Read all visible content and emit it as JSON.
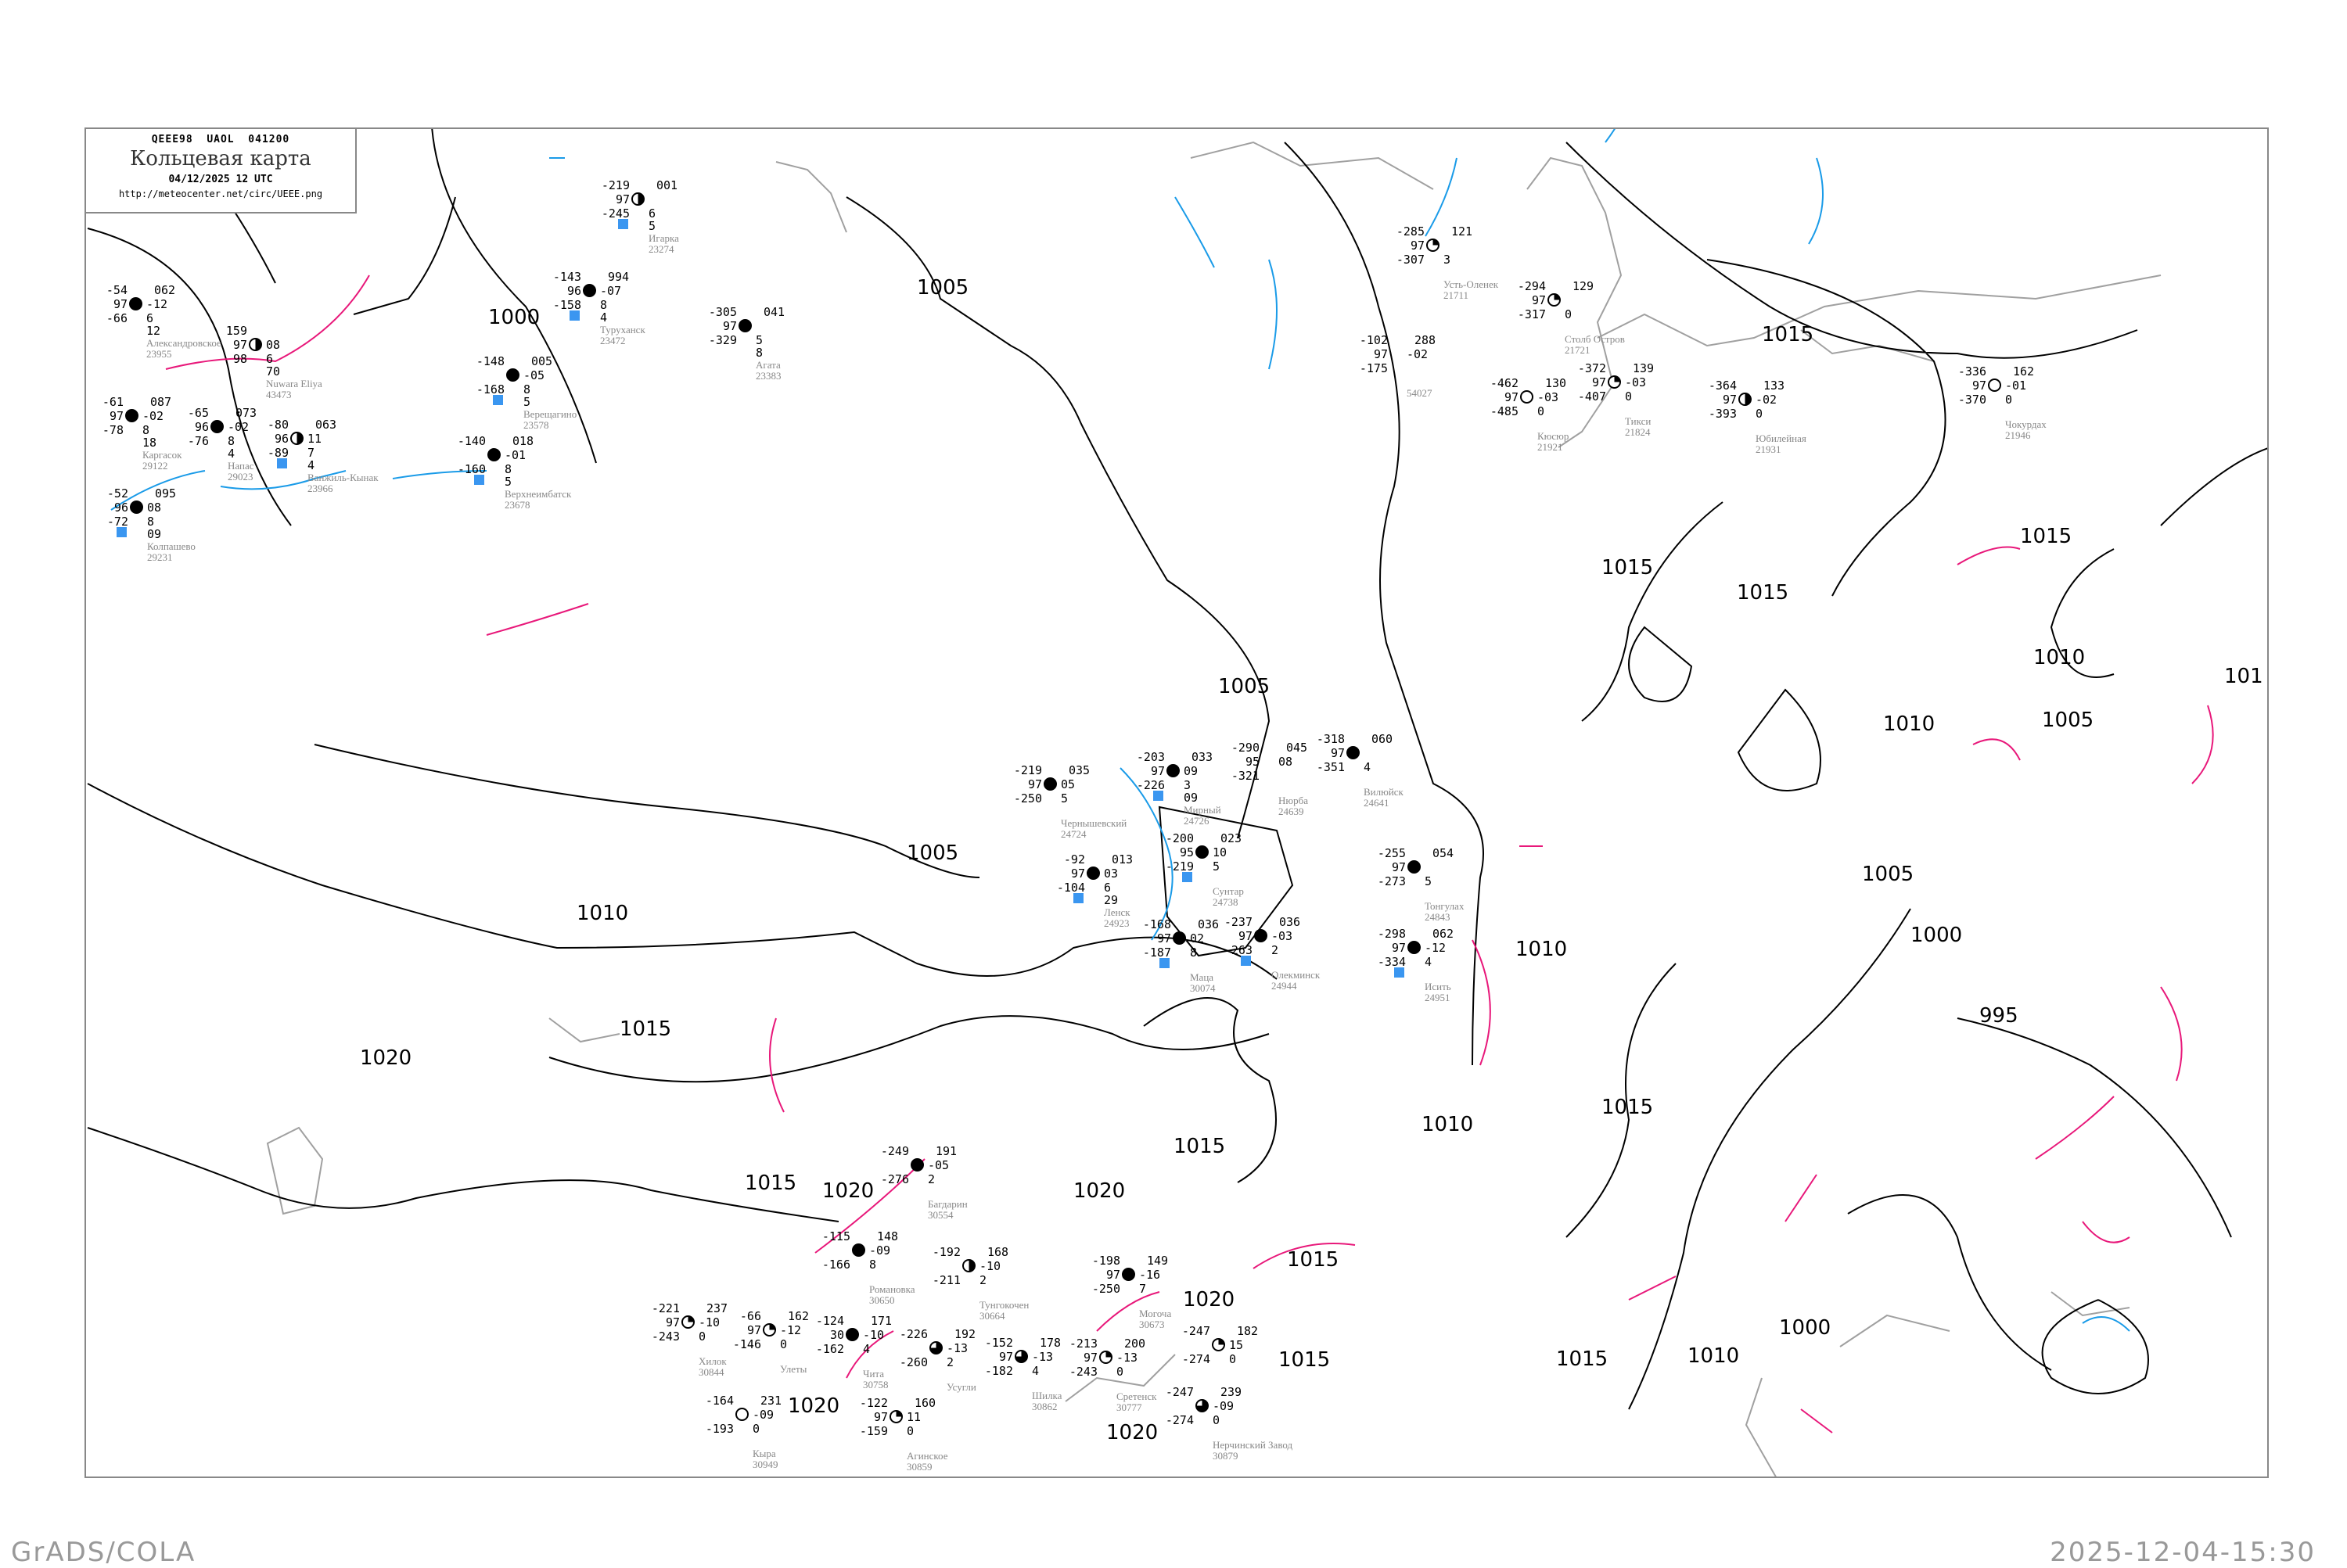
{
  "header": {
    "code_line": "QEEE98  UAOL  041200",
    "title": "Кольцевая карта",
    "date": "04/12/2025 12 UTC",
    "url": "http://meteocenter.net/circ/UEEE.png"
  },
  "footer": {
    "left": "GrADS/COLA",
    "right": "2025-12-04-15:30"
  },
  "colors": {
    "isobar": "#000000",
    "isotherm_positive": "#e8187a",
    "isotherm_negative": "#1a9be8",
    "coastline": "#a0a0a0",
    "snow_marker": "#3a96f0"
  },
  "isobar_labels": [
    "1000",
    "1005",
    "1015",
    "1005",
    "1010",
    "1015",
    "1020",
    "1005",
    "1020",
    "1020",
    "1020",
    "1020",
    "1015",
    "1015",
    "1015",
    "1010",
    "1010",
    "1005",
    "1005",
    "1000",
    "995",
    "1015",
    "1010",
    "1015",
    "1015",
    "1015",
    "1015",
    "1010",
    "1000",
    "1020",
    "1015",
    "1010",
    "101"
  ],
  "stations": [
    {
      "name": "Александровское",
      "id": "23955",
      "t": "-54",
      "vis": "97",
      "td": "-66",
      "p": "062",
      "tend": "-12",
      "cl": "6",
      "cl2": "12",
      "sky": "full"
    },
    {
      "name": "Nuwara Eliya",
      "id": "43473",
      "t": "159",
      "vis": "97",
      "td": "98",
      "p": "",
      "tend": "08",
      "cl": "6",
      "cl2": "70",
      "sky": "half"
    },
    {
      "name": "Каргасок",
      "id": "29122",
      "t": "-61",
      "vis": "97",
      "td": "-78",
      "p": "087",
      "tend": "-02",
      "cl": "8",
      "cl2": "18",
      "sky": "full"
    },
    {
      "name": "Напас",
      "id": "29023",
      "t": "-65",
      "vis": "96",
      "td": "-76",
      "p": "073",
      "tend": "-02",
      "cl": "8",
      "cl2": "4",
      "sky": "full"
    },
    {
      "name": "Ванжиль-Кынак",
      "id": "23966",
      "t": "-80",
      "vis": "96",
      "td": "-89",
      "p": "063",
      "tend": "11",
      "cl": "7",
      "cl2": "4",
      "sky": "half",
      "snow": true
    },
    {
      "name": "Колпашево",
      "id": "29231",
      "t": "-52",
      "vis": "96",
      "td": "-72",
      "p": "095",
      "tend": "08",
      "cl": "8",
      "cl2": "09",
      "sky": "full",
      "snow": true
    },
    {
      "name": "Игарка",
      "id": "23274",
      "t": "-219",
      "vis": "97",
      "td": "-245",
      "p": "001",
      "tend": "",
      "cl": "6",
      "cl2": "5",
      "sky": "half",
      "snow": true
    },
    {
      "name": "Туруханск",
      "id": "23472",
      "t": "-143",
      "vis": "96",
      "td": "-158",
      "p": "994",
      "tend": "-07",
      "cl": "8",
      "cl2": "4",
      "sky": "full",
      "snow": true
    },
    {
      "name": "Агата",
      "id": "23383",
      "t": "-305",
      "vis": "97",
      "td": "-329",
      "p": "041",
      "tend": "",
      "cl": "5",
      "cl2": "8",
      "sky": "full"
    },
    {
      "name": "Верещагино",
      "id": "23578",
      "t": "-148",
      "vis": "",
      "td": "-168",
      "p": "005",
      "tend": "-05",
      "cl": "8",
      "cl2": "5",
      "sky": "full",
      "snow": true
    },
    {
      "name": "Верхнеимбатск",
      "id": "23678",
      "t": "-140",
      "vis": "",
      "td": "-160",
      "p": "018",
      "tend": "-01",
      "cl": "8",
      "cl2": "5",
      "sky": "full",
      "snow": true
    },
    {
      "name": "Усть-Оленек",
      "id": "21711",
      "t": "-285",
      "vis": "97",
      "td": "-307",
      "p": "121",
      "tend": "",
      "cl": "3",
      "cl2": "",
      "sky": "quarter"
    },
    {
      "name": "Столб Остров",
      "id": "21721",
      "t": "-294",
      "vis": "97",
      "td": "-317",
      "p": "129",
      "tend": "",
      "cl": "0",
      "cl2": "",
      "sky": "quarter"
    },
    {
      "name": "Тикси",
      "id": "21824",
      "t": "-372",
      "vis": "97",
      "td": "-407",
      "p": "139",
      "tend": "-03",
      "cl": "0",
      "cl2": "",
      "sky": "quarter"
    },
    {
      "name": "Кюсюр",
      "id": "21921",
      "t": "-462",
      "vis": "97",
      "td": "-485",
      "p": "130",
      "tend": "-03",
      "cl": "0",
      "cl2": "",
      "sky": "empty"
    },
    {
      "name": "Юбилейная",
      "id": "21931",
      "t": "-364",
      "vis": "97",
      "td": "-393",
      "p": "133",
      "tend": "-02",
      "cl": "0",
      "cl2": "",
      "sky": "half"
    },
    {
      "name": "",
      "id": "54027",
      "t": "-102",
      "vis": "97",
      "td": "-175",
      "p": "288",
      "tend": "-02",
      "cl": "",
      "cl2": "",
      "sky": "none"
    },
    {
      "name": "Чокурдах",
      "id": "21946",
      "t": "-336",
      "vis": "97",
      "td": "-370",
      "p": "162",
      "tend": "-01",
      "cl": "0",
      "cl2": "",
      "sky": "empty"
    },
    {
      "name": "Чернышевский",
      "id": "24724",
      "t": "-219",
      "vis": "97",
      "td": "-250",
      "p": "035",
      "tend": "05",
      "cl": "5",
      "cl2": "",
      "sky": "full"
    },
    {
      "name": "Мирный",
      "id": "24726",
      "t": "-203",
      "vis": "97",
      "td": "-226",
      "p": "033",
      "tend": "09",
      "cl": "3",
      "cl2": "09",
      "sky": "full",
      "snow": true
    },
    {
      "name": "Сунтар",
      "id": "24738",
      "t": "-200",
      "vis": "95",
      "td": "-219",
      "p": "023",
      "tend": "10",
      "cl": "5",
      "cl2": "",
      "sky": "full",
      "snow": true
    },
    {
      "name": "Нюрба",
      "id": "24639",
      "t": "-290",
      "vis": "95",
      "td": "-321",
      "p": "045",
      "tend": "08",
      "cl": "",
      "cl2": "",
      "sky": "none"
    },
    {
      "name": "Вилюйск",
      "id": "24641",
      "t": "-318",
      "vis": "97",
      "td": "-351",
      "p": "060",
      "tend": "",
      "cl": "4",
      "cl2": "",
      "sky": "full"
    },
    {
      "name": "Ленск",
      "id": "24923",
      "t": "-92",
      "vis": "97",
      "td": "-104",
      "p": "013",
      "tend": "03",
      "cl": "6",
      "cl2": "29",
      "sky": "full",
      "snow": true
    },
    {
      "name": "Маца",
      "id": "30074",
      "t": "-168",
      "vis": "97",
      "td": "-187",
      "p": "036",
      "tend": "02",
      "cl": "8",
      "cl2": "",
      "sky": "full",
      "snow": true
    },
    {
      "name": "Олекминск",
      "id": "24944",
      "t": "-237",
      "vis": "97",
      "td": "-263",
      "p": "036",
      "tend": "-03",
      "cl": "2",
      "cl2": "",
      "sky": "full",
      "snow": true
    },
    {
      "name": "Тонгулах",
      "id": "24843",
      "t": "-255",
      "vis": "97",
      "td": "-273",
      "p": "054",
      "tend": "",
      "cl": "5",
      "cl2": "",
      "sky": "full"
    },
    {
      "name": "Исить",
      "id": "24951",
      "t": "-298",
      "vis": "97",
      "td": "-334",
      "p": "062",
      "tend": "-12",
      "cl": "4",
      "cl2": "",
      "sky": "full",
      "snow": true
    },
    {
      "name": "Романовка",
      "id": "30650",
      "t": "-115",
      "vis": "",
      "td": "-166",
      "p": "148",
      "tend": "-09",
      "cl": "8",
      "cl2": "",
      "sky": "full"
    },
    {
      "name": "Тунгокочен",
      "id": "30664",
      "t": "-192",
      "vis": "",
      "td": "-211",
      "p": "168",
      "tend": "-10",
      "cl": "2",
      "cl2": "",
      "sky": "half"
    },
    {
      "name": "Чита",
      "id": "30758",
      "t": "-124",
      "vis": "30",
      "td": "-162",
      "p": "171",
      "tend": "-10",
      "cl": "4",
      "cl2": "",
      "sky": "full"
    },
    {
      "name": "Усугли",
      "id": "",
      "t": "-226",
      "vis": "",
      "td": "-260",
      "p": "192",
      "tend": "-13",
      "cl": "2",
      "cl2": "",
      "sky": "threeq"
    },
    {
      "name": "Шилка",
      "id": "30862",
      "t": "-152",
      "vis": "97",
      "td": "-182",
      "p": "178",
      "tend": "-13",
      "cl": "4",
      "cl2": "",
      "sky": "threeq"
    },
    {
      "name": "Сретенск",
      "id": "30777",
      "t": "-213",
      "vis": "97",
      "td": "-243",
      "p": "200",
      "tend": "-13",
      "cl": "0",
      "cl2": "",
      "sky": "quarter"
    },
    {
      "name": "Агинское",
      "id": "30859",
      "t": "-122",
      "vis": "97",
      "td": "-159",
      "p": "160",
      "tend": "11",
      "cl": "0",
      "cl2": "",
      "sky": "quarter"
    },
    {
      "name": "Кыра",
      "id": "30949",
      "t": "-164",
      "vis": "",
      "td": "-193",
      "p": "231",
      "tend": "-09",
      "cl": "0",
      "cl2": "",
      "sky": "empty"
    },
    {
      "name": "Нерчинский Завод",
      "id": "30879",
      "t": "-247",
      "vis": "",
      "td": "-274",
      "p": "239",
      "tend": "-09",
      "cl": "0",
      "cl2": "",
      "sky": "threeq"
    },
    {
      "name": "Могоча",
      "id": "30673",
      "t": "-198",
      "vis": "97",
      "td": "-250",
      "p": "149",
      "tend": "-16",
      "cl": "7",
      "cl2": "",
      "sky": "full"
    },
    {
      "name": "",
      "id": "",
      "t": "-247",
      "vis": "",
      "td": "-274",
      "p": "182",
      "tend": "15",
      "cl": "0",
      "cl2": "",
      "sky": "quarter"
    },
    {
      "name": "Багдарин",
      "id": "30554",
      "t": "-249",
      "vis": "",
      "td": "-276",
      "p": "191",
      "tend": "-05",
      "cl": "2",
      "cl2": "",
      "sky": "full"
    },
    {
      "name": "Улеты",
      "id": "",
      "t": "-66",
      "vis": "97",
      "td": "-146",
      "p": "162",
      "tend": "-12",
      "cl": "0",
      "cl2": "",
      "sky": "quarter"
    },
    {
      "name": "Хилок",
      "id": "30844",
      "t": "-221",
      "vis": "97",
      "td": "-243",
      "p": "237",
      "tend": "-10",
      "cl": "0",
      "cl2": "",
      "sky": "quarter"
    }
  ]
}
